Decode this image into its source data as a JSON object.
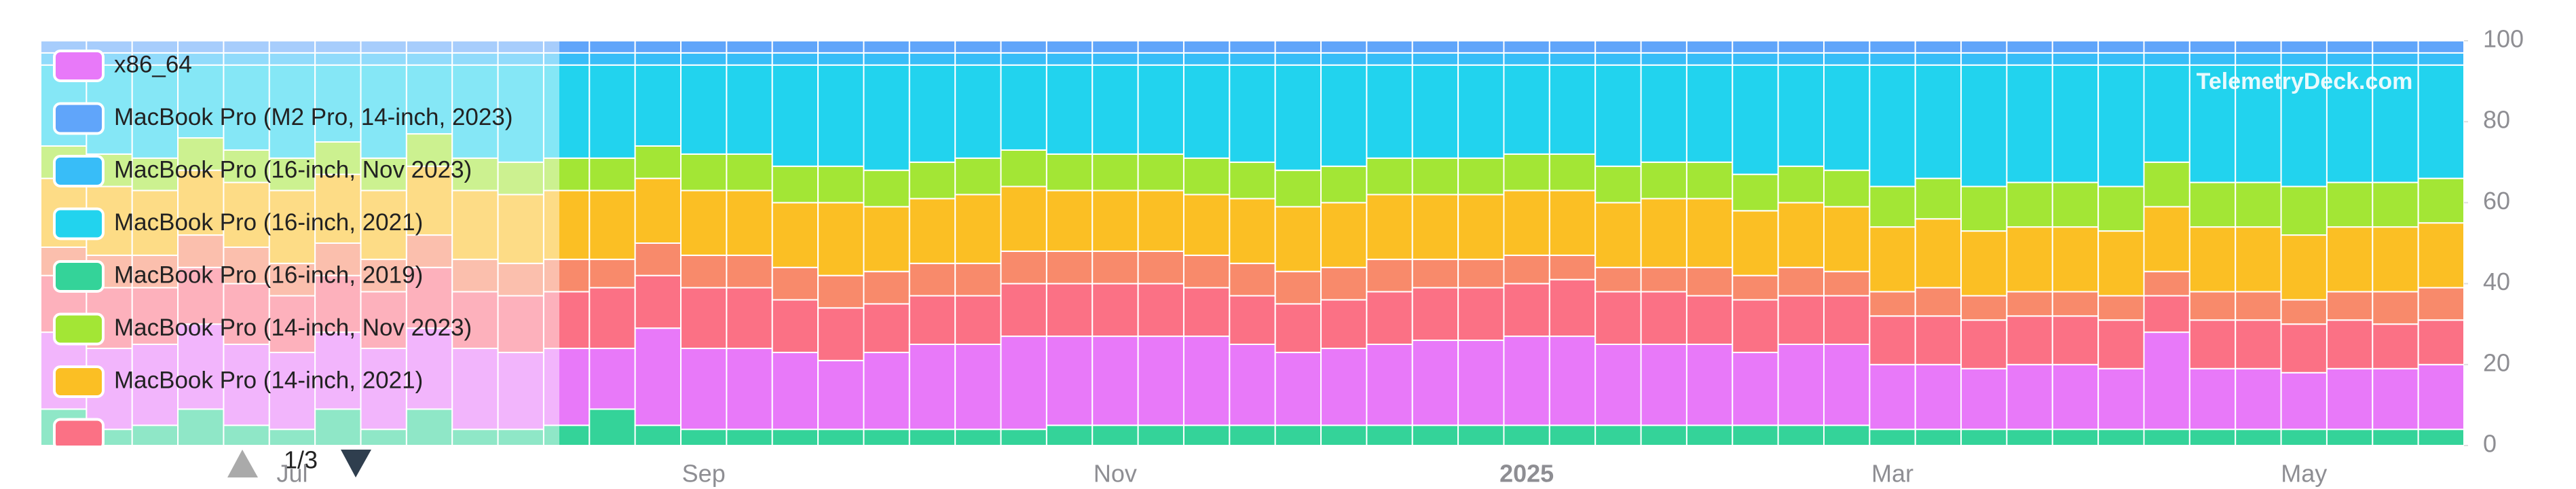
{
  "chart_data": {
    "type": "stacked_bar",
    "categories": [
      null,
      null,
      null,
      null,
      null,
      "Jul",
      null,
      null,
      null,
      null,
      null,
      null,
      null,
      null,
      "Sep",
      null,
      null,
      null,
      null,
      null,
      null,
      null,
      null,
      "Nov",
      null,
      null,
      null,
      null,
      null,
      null,
      null,
      null,
      "2025",
      null,
      null,
      null,
      null,
      null,
      null,
      null,
      "Mar",
      null,
      null,
      null,
      null,
      null,
      null,
      null,
      null,
      "May",
      null,
      null,
      null
    ],
    "ylim": [
      0,
      100
    ],
    "yticks": [
      0,
      20,
      40,
      60,
      80,
      100
    ],
    "watermark": "TelemetryDeck.com",
    "legend_page": "1/3",
    "series": [
      {
        "name": "MacBook Pro (16-inch, 2019)",
        "color": "#34d399",
        "values": [
          9,
          4,
          5,
          9,
          5,
          4,
          9,
          4,
          9,
          4,
          4,
          5,
          9,
          5,
          4,
          4,
          4,
          4,
          4,
          4,
          4,
          4,
          5,
          5,
          5,
          5,
          5,
          5,
          5,
          5,
          5,
          5,
          5,
          5,
          5,
          5,
          5,
          5,
          5,
          5,
          4,
          4,
          4,
          4,
          4,
          4,
          4,
          4,
          4,
          4,
          4,
          4,
          4
        ]
      },
      {
        "name": "x86_64",
        "color": "#e879f9",
        "values": [
          19,
          20,
          20,
          21,
          20,
          19,
          19,
          20,
          20,
          20,
          19,
          19,
          15,
          24,
          20,
          20,
          19,
          17,
          19,
          21,
          21,
          23,
          22,
          22,
          22,
          22,
          20,
          18,
          19,
          20,
          21,
          21,
          22,
          22,
          20,
          20,
          20,
          18,
          20,
          20,
          16,
          16,
          15,
          16,
          16,
          15,
          24,
          15,
          15,
          14,
          15,
          15,
          16
        ]
      },
      {
        "name": null,
        "color": "#fb7185",
        "values": [
          14,
          15,
          14,
          14,
          15,
          14,
          14,
          14,
          15,
          14,
          14,
          14,
          15,
          13,
          15,
          15,
          13,
          13,
          12,
          12,
          12,
          13,
          13,
          13,
          13,
          12,
          12,
          12,
          12,
          13,
          13,
          13,
          13,
          14,
          13,
          13,
          12,
          13,
          12,
          12,
          12,
          12,
          12,
          12,
          12,
          12,
          9,
          12,
          12,
          12,
          12,
          11,
          11
        ]
      },
      {
        "name": null,
        "color": "#f88a6b",
        "values": [
          7,
          8,
          8,
          8,
          9,
          8,
          8,
          8,
          8,
          8,
          8,
          8,
          7,
          8,
          8,
          8,
          8,
          8,
          8,
          8,
          8,
          8,
          8,
          8,
          8,
          8,
          8,
          8,
          8,
          8,
          7,
          7,
          7,
          6,
          6,
          6,
          7,
          6,
          7,
          6,
          6,
          7,
          6,
          6,
          6,
          6,
          6,
          7,
          7,
          6,
          7,
          8,
          8
        ]
      },
      {
        "name": "MacBook Pro (14-inch, 2021)",
        "color": "#fbbf24",
        "values": [
          17,
          17,
          16,
          16,
          16,
          18,
          17,
          17,
          17,
          17,
          17,
          17,
          17,
          16,
          16,
          16,
          16,
          18,
          16,
          16,
          17,
          16,
          15,
          15,
          15,
          15,
          16,
          16,
          16,
          16,
          16,
          16,
          16,
          16,
          16,
          17,
          17,
          16,
          16,
          16,
          16,
          17,
          16,
          16,
          16,
          16,
          16,
          16,
          16,
          16,
          16,
          16,
          16
        ]
      },
      {
        "name": "MacBook Pro (14-inch, Nov 2023)",
        "color": "#a3e635",
        "values": [
          8,
          8,
          8,
          8,
          8,
          8,
          8,
          8,
          8,
          8,
          8,
          8,
          8,
          8,
          9,
          9,
          9,
          9,
          9,
          9,
          9,
          9,
          9,
          9,
          9,
          9,
          9,
          9,
          9,
          9,
          9,
          9,
          9,
          9,
          9,
          9,
          9,
          9,
          9,
          9,
          10,
          10,
          11,
          11,
          11,
          11,
          11,
          11,
          11,
          12,
          11,
          11,
          11
        ]
      },
      {
        "name": "MacBook Pro (16-inch, 2021)",
        "color": "#22d3ee",
        "values": [
          20,
          22,
          23,
          18,
          21,
          23,
          19,
          23,
          17,
          23,
          24,
          23,
          23,
          20,
          22,
          22,
          25,
          25,
          26,
          24,
          23,
          21,
          22,
          22,
          22,
          23,
          24,
          26,
          25,
          23,
          23,
          23,
          22,
          22,
          25,
          24,
          24,
          27,
          25,
          26,
          30,
          28,
          30,
          29,
          29,
          30,
          24,
          29,
          29,
          30,
          29,
          29,
          28
        ]
      },
      {
        "name": "MacBook Pro (16-inch, Nov 2023)",
        "color": "#38bdf8",
        "values": [
          3,
          3,
          3,
          3,
          3,
          3,
          3,
          3,
          3,
          3,
          3,
          3,
          3,
          3,
          3,
          3,
          3,
          3,
          3,
          3,
          3,
          3,
          3,
          3,
          3,
          3,
          3,
          3,
          3,
          3,
          3,
          3,
          3,
          3,
          3,
          3,
          3,
          3,
          3,
          3,
          3,
          3,
          3,
          3,
          3,
          3,
          3,
          3,
          3,
          3,
          3,
          3,
          3
        ]
      },
      {
        "name": "MacBook Pro (M2 Pro, 14-inch, 2023)",
        "color": "#60a5fa",
        "values": [
          3,
          3,
          3,
          3,
          3,
          3,
          3,
          3,
          3,
          3,
          3,
          3,
          3,
          3,
          3,
          3,
          3,
          3,
          3,
          3,
          3,
          3,
          3,
          3,
          3,
          3,
          3,
          3,
          3,
          3,
          3,
          3,
          3,
          3,
          3,
          3,
          3,
          3,
          3,
          3,
          3,
          3,
          3,
          3,
          3,
          3,
          3,
          3,
          3,
          3,
          3,
          3,
          3
        ]
      }
    ]
  }
}
